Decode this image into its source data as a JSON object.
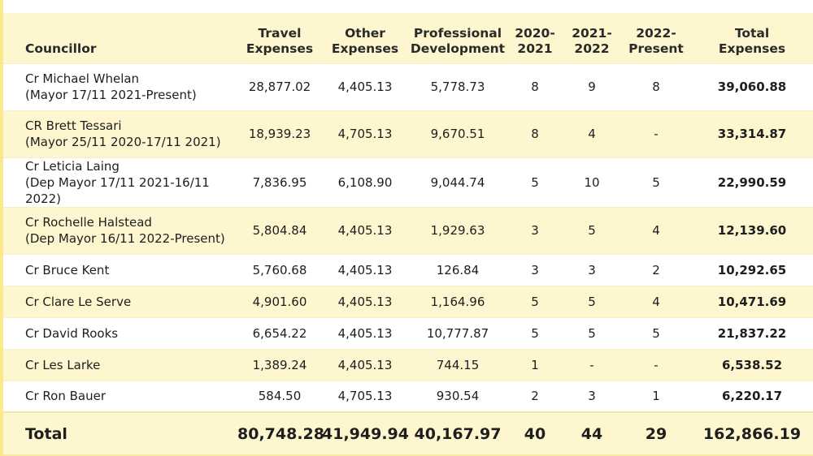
{
  "headers": {
    "councillor": "Councillor",
    "travel": [
      "Travel",
      "Expenses"
    ],
    "other": [
      "Other",
      "Expenses"
    ],
    "professional": [
      "Professional",
      "Development"
    ],
    "y2020": [
      "2020-",
      "2021"
    ],
    "y2021": [
      "2021-",
      "2022"
    ],
    "y2022": [
      "2022-",
      "Present"
    ],
    "total": [
      "Total",
      "Expenses"
    ]
  },
  "rows": [
    {
      "name": "Cr Michael Whelan",
      "role": "(Mayor 17/11 2021-Present)",
      "travel": "28,877.02",
      "other": "4,405.13",
      "prof": "5,778.73",
      "y2020": "8",
      "y2021": "9",
      "y2022": "8",
      "total": "39,060.88"
    },
    {
      "name": "CR Brett Tessari",
      "role": "(Mayor 25/11 2020-17/11 2021)",
      "travel": "18,939.23",
      "other": "4,705.13",
      "prof": "9,670.51",
      "y2020": "8",
      "y2021": "4",
      "y2022": "-",
      "total": "33,314.87"
    },
    {
      "name": "Cr Leticia Laing",
      "role": "(Dep Mayor 17/11 2021-16/11 2022)",
      "travel": "7,836.95",
      "other": "6,108.90",
      "prof": "9,044.74",
      "y2020": "5",
      "y2021": "10",
      "y2022": "5",
      "total": "22,990.59"
    },
    {
      "name": "Cr Rochelle Halstead",
      "role": "(Dep Mayor 16/11 2022-Present)",
      "travel": "5,804.84",
      "other": "4,405.13",
      "prof": "1,929.63",
      "y2020": "3",
      "y2021": "5",
      "y2022": "4",
      "total": "12,139.60"
    },
    {
      "name": "Cr Bruce Kent",
      "role": "",
      "travel": "5,760.68",
      "other": "4,405.13",
      "prof": "126.84",
      "y2020": "3",
      "y2021": "3",
      "y2022": "2",
      "total": "10,292.65"
    },
    {
      "name": "Cr Clare Le Serve",
      "role": "",
      "travel": "4,901.60",
      "other": "4,405.13",
      "prof": "1,164.96",
      "y2020": "5",
      "y2021": "5",
      "y2022": "4",
      "total": "10,471.69"
    },
    {
      "name": "Cr David Rooks",
      "role": "",
      "travel": "6,654.22",
      "other": "4,405.13",
      "prof": "10,777.87",
      "y2020": "5",
      "y2021": "5",
      "y2022": "5",
      "total": "21,837.22"
    },
    {
      "name": "Cr Les Larke",
      "role": "",
      "travel": "1,389.24",
      "other": "4,405.13",
      "prof": "744.15",
      "y2020": "1",
      "y2021": "-",
      "y2022": "-",
      "total": "6,538.52"
    },
    {
      "name": "Cr Ron Bauer",
      "role": "",
      "travel": "584.50",
      "other": "4,705.13",
      "prof": "930.54",
      "y2020": "2",
      "y2021": "3",
      "y2022": "1",
      "total": "6,220.17"
    }
  ],
  "totals": {
    "label": "Total",
    "travel": "80,748.28",
    "other": "41,949.94",
    "prof": "40,167.97",
    "y2020": "40",
    "y2021": "44",
    "y2022": "29",
    "total": "162,866.19"
  },
  "colors": {
    "cream": "#fdf6cf",
    "white": "#ffffff",
    "accent": "#fbe88c"
  }
}
